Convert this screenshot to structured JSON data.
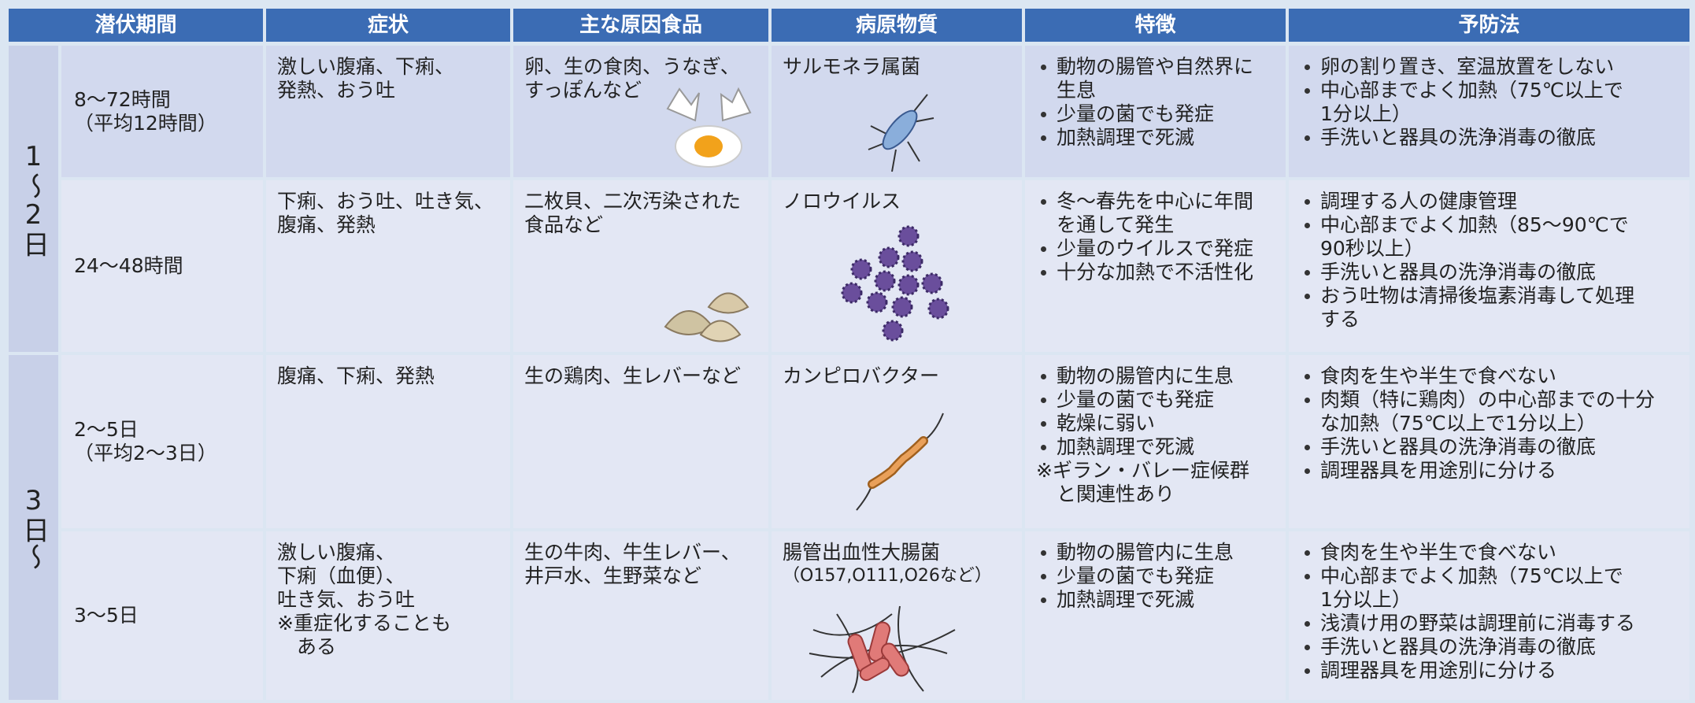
{
  "header": [
    "潜伏期間",
    "症状",
    "主な原因食品",
    "病原物質",
    "特徴",
    "予防法"
  ],
  "groups": [
    {
      "label": "1～2日",
      "rows": [
        {
          "period": [
            "8～72時間",
            "（平均12時間）"
          ],
          "symptoms": [
            "激しい腹痛、下痢、",
            "発熱、おう吐"
          ],
          "foods": [
            "卵、生の食肉、うなぎ、",
            "すっぽんなど"
          ],
          "pathogen": [
            "サルモネラ属菌"
          ],
          "features": [
            [
              "動物の腸管や自然界に",
              "生息"
            ],
            [
              "少量の菌でも発症"
            ],
            [
              "加熱調理で死滅"
            ]
          ],
          "prevention": [
            [
              "卵の割り置き、室温放置をしない"
            ],
            [
              "中心部までよく加熱（75℃以上で",
              "1分以上）"
            ],
            [
              "手洗いと器具の洗浄消毒の徹底"
            ]
          ]
        },
        {
          "period": [
            "24～48時間"
          ],
          "symptoms": [
            "下痢、おう吐、吐き気、",
            "腹痛、発熱"
          ],
          "foods": [
            "二枚貝、二次汚染された",
            "食品など"
          ],
          "pathogen": [
            "ノロウイルス"
          ],
          "features": [
            [
              "冬～春先を中心に年間",
              "を通して発生"
            ],
            [
              "少量のウイルスで発症"
            ],
            [
              "十分な加熱で不活性化"
            ]
          ],
          "prevention": [
            [
              "調理する人の健康管理"
            ],
            [
              "中心部までよく加熱（85～90℃で",
              "90秒以上）"
            ],
            [
              "手洗いと器具の洗浄消毒の徹底"
            ],
            [
              "おう吐物は清掃後塩素消毒して処理",
              "する"
            ]
          ]
        }
      ]
    },
    {
      "label": "3日～",
      "rows": [
        {
          "period": [
            "2～5日",
            "（平均2～3日）"
          ],
          "symptoms": [
            "腹痛、下痢、発熱"
          ],
          "foods": [
            "生の鶏肉、生レバーなど"
          ],
          "pathogen": [
            "カンピロバクター"
          ],
          "features": [
            [
              "動物の腸管内に生息"
            ],
            [
              "少量の菌でも発症"
            ],
            [
              "乾燥に弱い"
            ],
            [
              "加熱調理で死滅"
            ]
          ],
          "features_note": [
            "※ギラン・バレー症候群",
            "と関連性あり"
          ],
          "prevention": [
            [
              "食肉を生や半生で食べない"
            ],
            [
              "肉類（特に鶏肉）の中心部までの十分",
              "な加熱（75℃以上で1分以上）"
            ],
            [
              "手洗いと器具の洗浄消毒の徹底"
            ],
            [
              "調理器具を用途別に分ける"
            ]
          ]
        },
        {
          "period": [
            "3～5日"
          ],
          "symptoms": [
            "激しい腹痛、",
            "下痢（血便）、",
            "吐き気、おう吐",
            "※重症化することも",
            "　ある"
          ],
          "foods": [
            "生の牛肉、牛生レバー、",
            "井戸水、生野菜など"
          ],
          "pathogen": [
            "腸管出血性大腸菌"
          ],
          "pathogen_note": "（O157,O111,O26など）",
          "features": [
            [
              "動物の腸管内に生息"
            ],
            [
              "少量の菌でも発症"
            ],
            [
              "加熱調理で死滅"
            ]
          ],
          "prevention": [
            [
              "食肉を生や半生で食べない"
            ],
            [
              "中心部までよく加熱（75℃以上で",
              "1分以上）"
            ],
            [
              "浅漬け用の野菜は調理前に消毒する"
            ],
            [
              "手洗いと器具の洗浄消毒の徹底"
            ],
            [
              "調理器具を用途別に分ける"
            ]
          ]
        }
      ]
    }
  ]
}
